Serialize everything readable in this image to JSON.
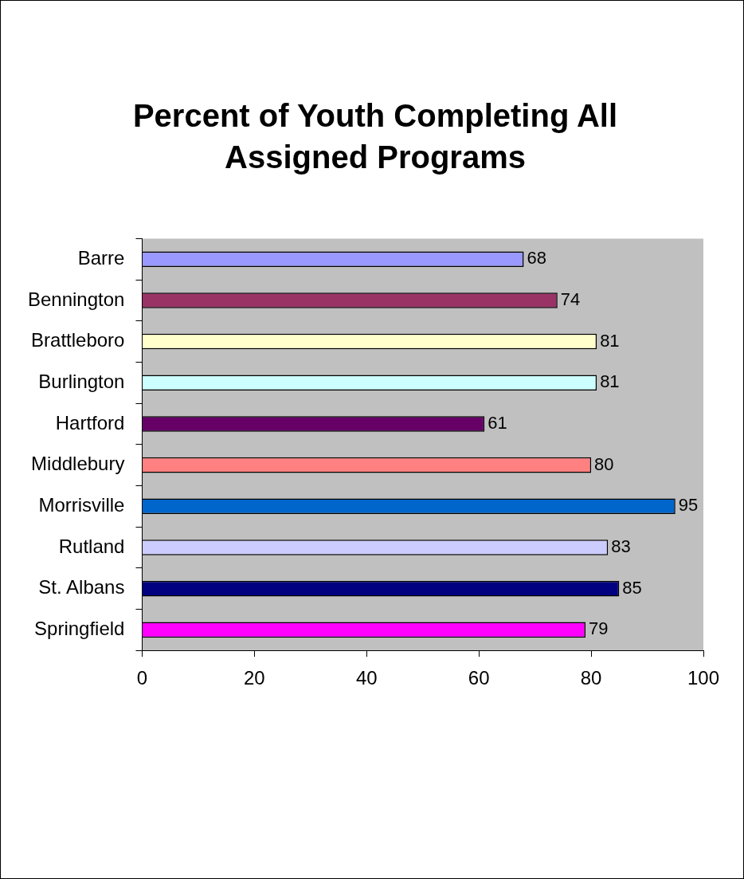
{
  "chart_data": {
    "type": "bar",
    "orientation": "horizontal",
    "title": "Percent of Youth Completing All Assigned Programs",
    "categories": [
      "Barre",
      "Bennington",
      "Brattleboro",
      "Burlington",
      "Hartford",
      "Middlebury",
      "Morrisville",
      "Rutland",
      "St. Albans",
      "Springfield"
    ],
    "values": [
      68,
      74,
      81,
      81,
      61,
      80,
      95,
      83,
      85,
      79
    ],
    "colors": [
      "#9999ff",
      "#993366",
      "#ffffcc",
      "#ccffff",
      "#660066",
      "#ff8080",
      "#0066cc",
      "#ccccff",
      "#000080",
      "#ff00ff"
    ],
    "xlim": [
      0,
      100
    ],
    "xticks": [
      0,
      20,
      40,
      60,
      80,
      100
    ],
    "data_labels": true,
    "legend": false
  }
}
